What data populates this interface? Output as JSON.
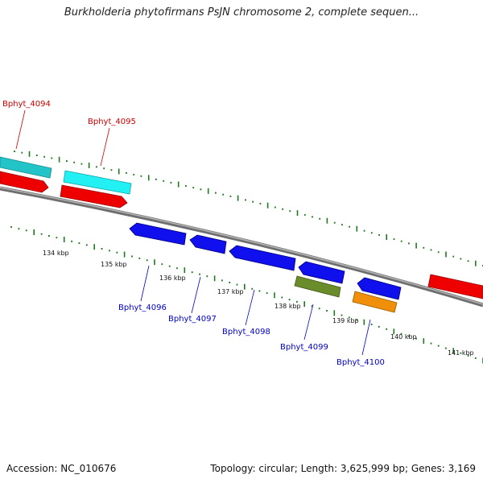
{
  "title": "Burkholderia phytofirmans PsJN chromosome 2, complete sequen...",
  "footer": {
    "accession": "Accession: NC_010676",
    "summary": "Topology: circular; Length: 3,625,999 bp; Genes: 3,169"
  },
  "colors": {
    "backbone": "#808080",
    "tick": "#1f7a1f",
    "forward_label": "#cc0000",
    "reverse_label": "#0000cc"
  },
  "ticks": [
    "134 kbp",
    "135 kbp",
    "136 kbp",
    "137 kbp",
    "138 kbp",
    "139 kbp",
    "140 kbp",
    "141 kbp"
  ],
  "genes": [
    {
      "name": "Bphyt_4094",
      "strand": "+",
      "label_color": "#cc0000",
      "feature_colors": [
        "#22c4c8",
        "#ee0000"
      ]
    },
    {
      "name": "Bphyt_4095",
      "strand": "+",
      "label_color": "#cc0000",
      "feature_colors": [
        "#22f0f2",
        "#ee0000"
      ]
    },
    {
      "name": "Bphyt_4096",
      "strand": "-",
      "label_color": "#0000cc",
      "feature_colors": [
        "#1010ee"
      ]
    },
    {
      "name": "Bphyt_4097",
      "strand": "-",
      "label_color": "#0000cc",
      "feature_colors": [
        "#1010ee"
      ]
    },
    {
      "name": "Bphyt_4098",
      "strand": "-",
      "label_color": "#0000cc",
      "feature_colors": [
        "#1010ee"
      ]
    },
    {
      "name": "Bphyt_4099",
      "strand": "-",
      "label_color": "#0000cc",
      "feature_colors": [
        "#1010ee",
        "#6b8c2a"
      ]
    },
    {
      "name": "Bphyt_4100",
      "strand": "-",
      "label_color": "#0000cc",
      "feature_colors": [
        "#1010ee",
        "#f0900a"
      ]
    }
  ],
  "unlabeled_feature_colors": [
    "#ee0000"
  ]
}
